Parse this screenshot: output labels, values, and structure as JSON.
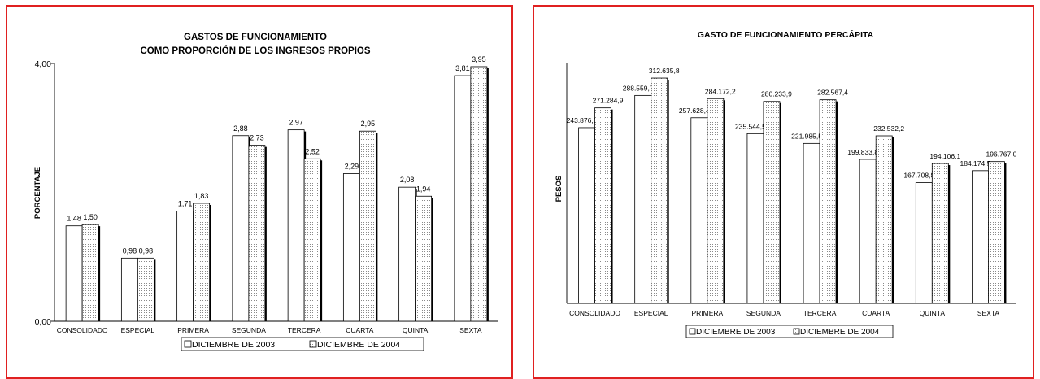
{
  "chart_data": [
    {
      "type": "bar",
      "title": "GASTOS DE FUNCIONAMIENTO",
      "subtitle": "COMO PROPORCIÓN DE LOS INGRESOS PROPIOS",
      "ylabel": "PORCENTAJE",
      "xlabel": "",
      "ylim": [
        0,
        4
      ],
      "yticks": [
        "0,00",
        "4,00"
      ],
      "grid": false,
      "legend_position": "bottom",
      "categories": [
        "CONSOLIDADO",
        "ESPECIAL",
        "PRIMERA",
        "SEGUNDA",
        "TERCERA",
        "CUARTA",
        "QUINTA",
        "SEXTA"
      ],
      "series": [
        {
          "name": "DICIEMBRE DE 2003",
          "values": [
            1.48,
            0.98,
            1.71,
            2.88,
            2.97,
            2.29,
            2.08,
            3.81
          ],
          "labels": [
            "1,48",
            "0,98",
            "1,71",
            "2,88",
            "2,97",
            "2,29",
            "2,08",
            "3,81"
          ]
        },
        {
          "name": "DICIEMBRE DE 2004",
          "values": [
            1.5,
            0.98,
            1.83,
            2.73,
            2.52,
            2.95,
            1.94,
            3.95
          ],
          "labels": [
            "1,50",
            "0,98",
            "1,83",
            "2,73",
            "2,52",
            "2,95",
            "1,94",
            "3,95"
          ]
        }
      ]
    },
    {
      "type": "bar",
      "title": "GASTO DE FUNCIONAMIENTO PERCÁPITA",
      "ylabel": "PESOS",
      "xlabel": "",
      "grid": false,
      "legend_position": "bottom",
      "categories": [
        "CONSOLIDADO",
        "ESPECIAL",
        "PRIMERA",
        "SEGUNDA",
        "TERCERA",
        "CUARTA",
        "QUINTA",
        "SEXTA"
      ],
      "series": [
        {
          "name": "DICIEMBRE DE 2003",
          "values": [
            243876.3,
            288559.7,
            257628.4,
            235544.5,
            221985.5,
            199833.8,
            167708.8,
            184174.5
          ],
          "labels": [
            "243.876,3",
            "288.559,7",
            "257.628,4",
            "235.544,5",
            "221.985,5",
            "199.833,8",
            "167.708,8",
            "184.174,5"
          ]
        },
        {
          "name": "DICIEMBRE DE 2004",
          "values": [
            271284.9,
            312635.8,
            284172.2,
            280233.9,
            282567.4,
            232532.2,
            194106.1,
            196767.0
          ],
          "labels": [
            "271.284,9",
            "312.635,8",
            "284.172,2",
            "280.233,9",
            "282.567,4",
            "232.532,2",
            "194.106,1",
            "196.767,0"
          ]
        }
      ]
    }
  ],
  "colors": {
    "border": "#e02020",
    "series_2003": "#ffffff",
    "series_2004": "#e4e4e4",
    "shadow": "#000000"
  }
}
